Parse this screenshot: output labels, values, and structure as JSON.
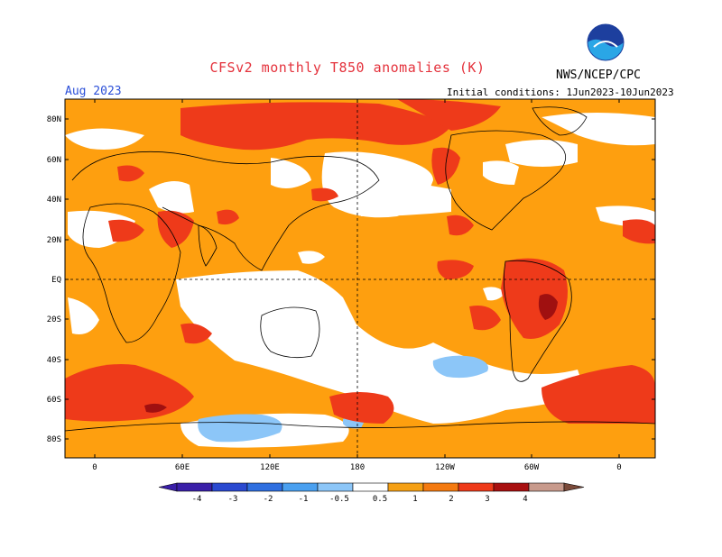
{
  "header": {
    "title": "CFSv2 monthly T850 anomalies (K)",
    "org": "NWS/NCEP/CPC",
    "period": "Aug 2023",
    "initial_conditions": "Initial conditions: 1Jun2023-10Jun2023"
  },
  "logo": {
    "text": "NOAA",
    "color_top": "#1d3f9e",
    "color_bottom": "#2aa6e6"
  },
  "axes": {
    "lat_labels": [
      "80N",
      "60N",
      "40N",
      "20N",
      "EQ",
      "20S",
      "40S",
      "60S",
      "80S"
    ],
    "lon_labels": [
      "0",
      "60E",
      "120E",
      "180",
      "120W",
      "60W",
      "0"
    ]
  },
  "colorbar": {
    "labels": [
      "-4",
      "-3",
      "-2",
      "-1",
      "-0.5",
      "0.5",
      "1",
      "2",
      "3",
      "4"
    ],
    "colors": [
      "#3a1fa8",
      "#2a49d0",
      "#2f6fe0",
      "#4aa0f0",
      "#8cc6f8",
      "#ffffff",
      "#f5a014",
      "#f47a10",
      "#ee3a1a",
      "#a81010",
      "#c89a8c",
      "#7a4a3a"
    ]
  },
  "map_colors": {
    "ocean_warm": "#fe9f0f",
    "warm2": "#ff6a1a",
    "warm3": "#ee3a1a",
    "warm4": "#a01010",
    "neutral": "#ffffff",
    "cool1": "#8cc6f8"
  }
}
